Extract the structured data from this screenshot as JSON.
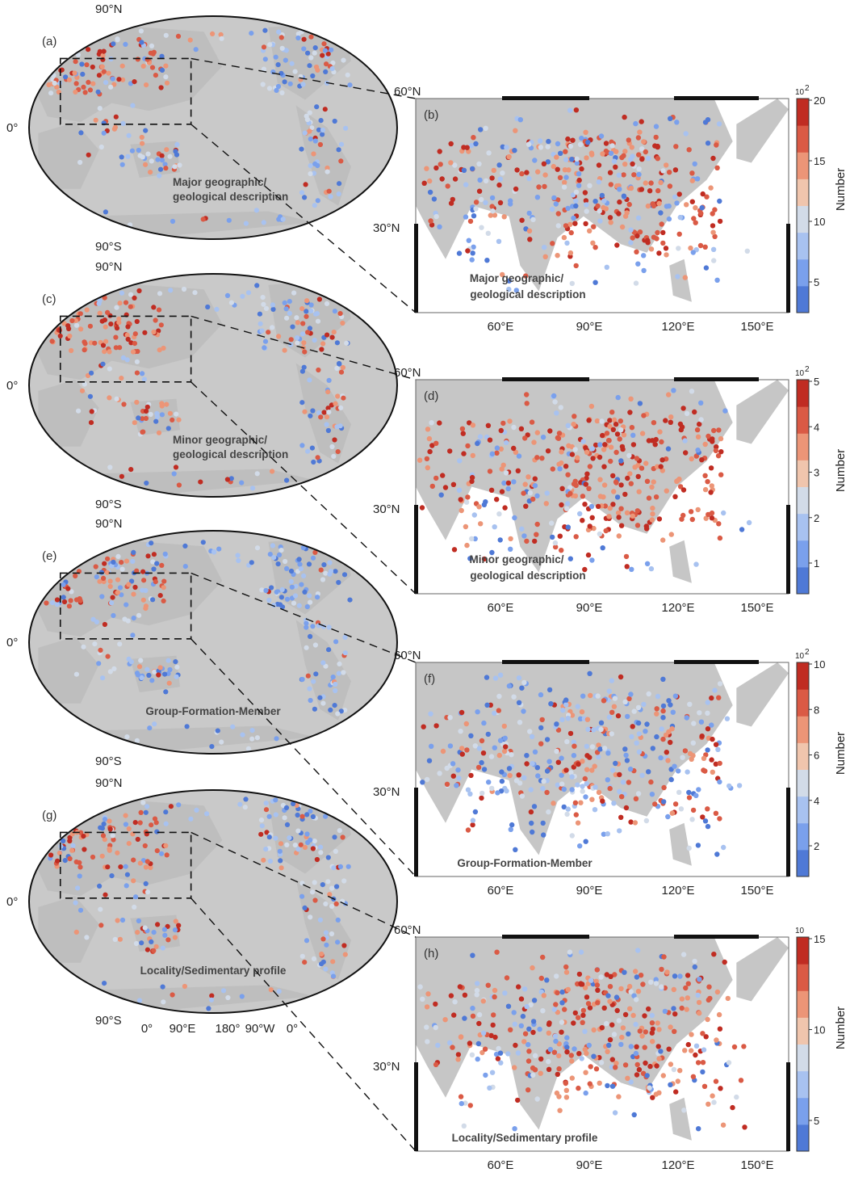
{
  "colormap": [
    "#4f79d6",
    "#7aa0ec",
    "#a8c2f0",
    "#d2dbe8",
    "#f0c5ad",
    "#ec9577",
    "#da5a45",
    "#c02c22"
  ],
  "colors": {
    "land": "#c6c6c6",
    "ocean": "#ffffff",
    "border": "#111111"
  },
  "panels": [
    {
      "letter": "(a)",
      "zoom_letter": "(b)",
      "caption": [
        "Major geographic/",
        "geological description"
      ],
      "zoom_caption": [
        "Major geographic/",
        "geological description"
      ],
      "colorbar": {
        "exponent": "10",
        "exp_power": "2",
        "ticks": [
          "20",
          "15",
          "10",
          "5"
        ],
        "title": "Number"
      },
      "intensity": "high"
    },
    {
      "letter": "(c)",
      "zoom_letter": "(d)",
      "caption": [
        "Minor geographic/",
        "geological description"
      ],
      "zoom_caption": [
        "Minor geographic/",
        "geological description"
      ],
      "colorbar": {
        "exponent": "10",
        "exp_power": "2",
        "ticks": [
          "5",
          "4",
          "3",
          "2",
          "1"
        ],
        "title": "Number"
      },
      "intensity": "very-high"
    },
    {
      "letter": "(e)",
      "zoom_letter": "(f)",
      "caption": [
        "Group-Formation-Member"
      ],
      "zoom_caption": [
        "Group-Formation-Member"
      ],
      "colorbar": {
        "exponent": "10",
        "exp_power": "2",
        "ticks": [
          "10",
          "8",
          "6",
          "4",
          "2"
        ],
        "title": "Number"
      },
      "intensity": "medium"
    },
    {
      "letter": "(g)",
      "zoom_letter": "(h)",
      "caption": [
        "Locality/Sedimentary profile"
      ],
      "zoom_caption": [
        "Locality/Sedimentary profile"
      ],
      "colorbar": {
        "exponent": "10",
        "exp_power": "",
        "ticks": [
          "15",
          "10",
          "5"
        ],
        "title": "Number"
      },
      "intensity": "high"
    }
  ],
  "global_axis": {
    "north": "90°N",
    "equator": "0°",
    "south": "90°S",
    "bottom_ticks": [
      "0°",
      "90°E",
      "180°",
      "90°W",
      "0°"
    ]
  },
  "zoom_axis": {
    "lat_top": "60°N",
    "lat_mid": "30°N",
    "lon_ticks": [
      "60°E",
      "90°E",
      "120°E",
      "150°E"
    ]
  }
}
